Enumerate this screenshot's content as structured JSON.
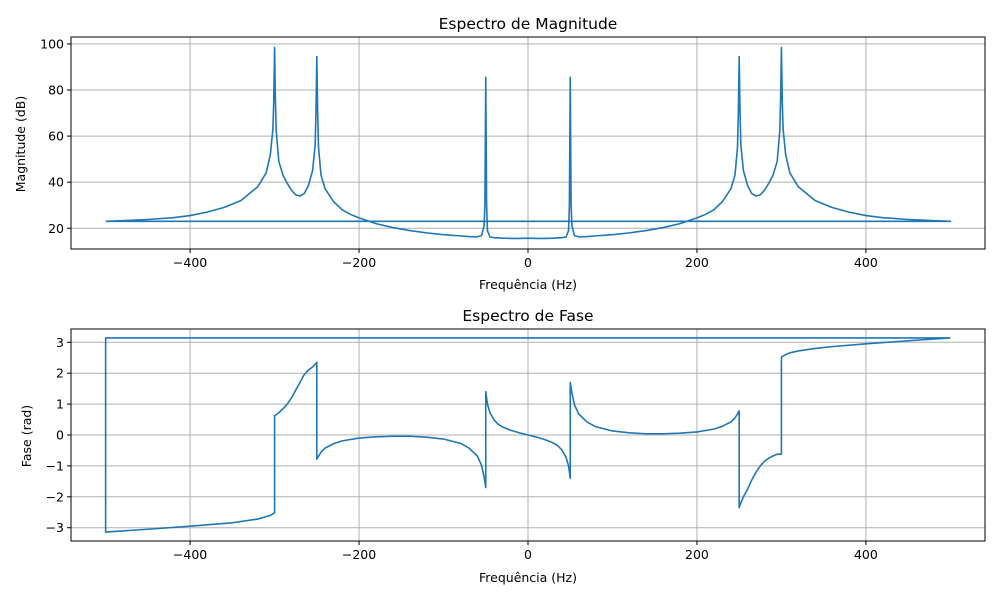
{
  "colors": {
    "line": "#1f77b4",
    "grid": "#b0b0b0",
    "axes": "#000000",
    "background": "#ffffff"
  },
  "chart_data": [
    {
      "type": "line",
      "title": "Espectro de Magnitude",
      "xlabel": "Frequência (Hz)",
      "ylabel": "Magnitude (dB)",
      "xlim": [
        -541,
        541
      ],
      "ylim": [
        11,
        103
      ],
      "xticks": [
        -400,
        -200,
        0,
        200,
        400
      ],
      "xtick_labels": [
        "−400",
        "−200",
        "0",
        "200",
        "400"
      ],
      "yticks": [
        20,
        40,
        60,
        80,
        100
      ],
      "ytick_labels": [
        "20",
        "40",
        "60",
        "80",
        "100"
      ],
      "grid": true,
      "series": [
        {
          "x": [
            -500,
            -450,
            -420,
            -400,
            -380,
            -360,
            -340,
            -320,
            -310,
            -305,
            -302,
            -301,
            -300,
            -299,
            -298,
            -295,
            -290,
            -285,
            -280,
            -275,
            -270,
            -265,
            -260,
            -255,
            -252,
            -251,
            -250,
            -249,
            -248,
            -245,
            -240,
            -230,
            -220,
            -210,
            -200,
            -180,
            -160,
            -140,
            -120,
            -100,
            -80,
            -70,
            -60,
            -55,
            -52,
            -51,
            -50,
            -49,
            -48,
            -45,
            -40,
            -30,
            -20,
            -10,
            0,
            10,
            20,
            30,
            40,
            45,
            48,
            49,
            50,
            51,
            52,
            55,
            60,
            70,
            80,
            100,
            120,
            140,
            160,
            180,
            200,
            210,
            220,
            230,
            240,
            245,
            248,
            249,
            250,
            251,
            252,
            255,
            260,
            265,
            270,
            275,
            280,
            285,
            290,
            295,
            298,
            299,
            300,
            301,
            302,
            305,
            310,
            320,
            340,
            360,
            380,
            400,
            420,
            450,
            500,
            500,
            -500
          ],
          "y": [
            23,
            23.8,
            24.6,
            25.5,
            27,
            29,
            32,
            38,
            44,
            52,
            63,
            75,
            98.5,
            75,
            62,
            49,
            43,
            39.5,
            36.5,
            34.5,
            34,
            35,
            38.5,
            45,
            56,
            70,
            94.5,
            70,
            55,
            43,
            37,
            31.5,
            28,
            26,
            24.5,
            22,
            20.3,
            19,
            18,
            17.2,
            16.7,
            16.4,
            16.3,
            16.8,
            21,
            30,
            85.5,
            30,
            19,
            16.2,
            15.9,
            15.7,
            15.6,
            15.6,
            15.7,
            15.6,
            15.6,
            15.7,
            15.9,
            16.2,
            19,
            30,
            85.5,
            30,
            21,
            16.8,
            16.3,
            16.4,
            16.7,
            17.2,
            18,
            19,
            20.3,
            22,
            24.5,
            26,
            28,
            31.5,
            37,
            43,
            55,
            70,
            94.5,
            70,
            56,
            45,
            38.5,
            35,
            34,
            34.5,
            36.5,
            39.5,
            43,
            49,
            62,
            75,
            98.5,
            75,
            63,
            52,
            44,
            38,
            32,
            29,
            27,
            25.5,
            24.6,
            23.8,
            23,
            23,
            23
          ]
        }
      ]
    },
    {
      "type": "line",
      "title": "Espectro de Fase",
      "xlabel": "Frequência (Hz)",
      "ylabel": "Fase (rad)",
      "xlim": [
        -541,
        541
      ],
      "ylim": [
        -3.43,
        3.43
      ],
      "xticks": [
        -400,
        -200,
        0,
        200,
        400
      ],
      "xtick_labels": [
        "−400",
        "−200",
        "0",
        "200",
        "400"
      ],
      "yticks": [
        -3,
        -2,
        -1,
        0,
        1,
        2,
        3
      ],
      "ytick_labels": [
        "−3",
        "−2",
        "−1",
        "0",
        "1",
        "2",
        "3"
      ],
      "grid": true,
      "series": [
        {
          "x": [
            500,
            -500,
            -500,
            -450,
            -400,
            -350,
            -320,
            -305,
            -300,
            -300,
            -295,
            -290,
            -285,
            -280,
            -275,
            -270,
            -265,
            -260,
            -255,
            -250,
            -250,
            -245,
            -240,
            -230,
            -220,
            -200,
            -180,
            -160,
            -140,
            -120,
            -100,
            -80,
            -70,
            -60,
            -55,
            -52,
            -50,
            -50,
            -48,
            -45,
            -40,
            -35,
            -30,
            -20,
            -10,
            0,
            10,
            20,
            30,
            35,
            40,
            45,
            48,
            50,
            50,
            52,
            55,
            60,
            70,
            80,
            100,
            120,
            140,
            160,
            180,
            200,
            220,
            230,
            240,
            245,
            248,
            250,
            250,
            252,
            255,
            260,
            265,
            270,
            275,
            280,
            285,
            290,
            295,
            300,
            300,
            305,
            310,
            320,
            340,
            360,
            400,
            450,
            500
          ],
          "y": [
            3.14,
            3.14,
            -3.14,
            -3.05,
            -2.95,
            -2.84,
            -2.72,
            -2.6,
            -2.52,
            0.62,
            0.72,
            0.85,
            1.0,
            1.2,
            1.45,
            1.7,
            1.95,
            2.1,
            2.2,
            2.35,
            -0.78,
            -0.55,
            -0.42,
            -0.28,
            -0.19,
            -0.1,
            -0.06,
            -0.04,
            -0.04,
            -0.07,
            -0.13,
            -0.27,
            -0.42,
            -0.68,
            -0.98,
            -1.35,
            -1.7,
            1.4,
            1.0,
            0.72,
            0.48,
            0.34,
            0.26,
            0.15,
            0.07,
            0.0,
            -0.07,
            -0.15,
            -0.26,
            -0.34,
            -0.48,
            -0.72,
            -1.0,
            -1.4,
            1.7,
            1.35,
            0.98,
            0.68,
            0.42,
            0.27,
            0.13,
            0.07,
            0.04,
            0.04,
            0.06,
            0.1,
            0.19,
            0.28,
            0.42,
            0.55,
            0.68,
            0.78,
            -2.35,
            -2.2,
            -2.0,
            -1.75,
            -1.45,
            -1.2,
            -1.0,
            -0.85,
            -0.75,
            -0.68,
            -0.62,
            -0.62,
            2.52,
            2.6,
            2.66,
            2.72,
            2.8,
            2.86,
            2.95,
            3.05,
            3.14
          ]
        }
      ]
    }
  ]
}
